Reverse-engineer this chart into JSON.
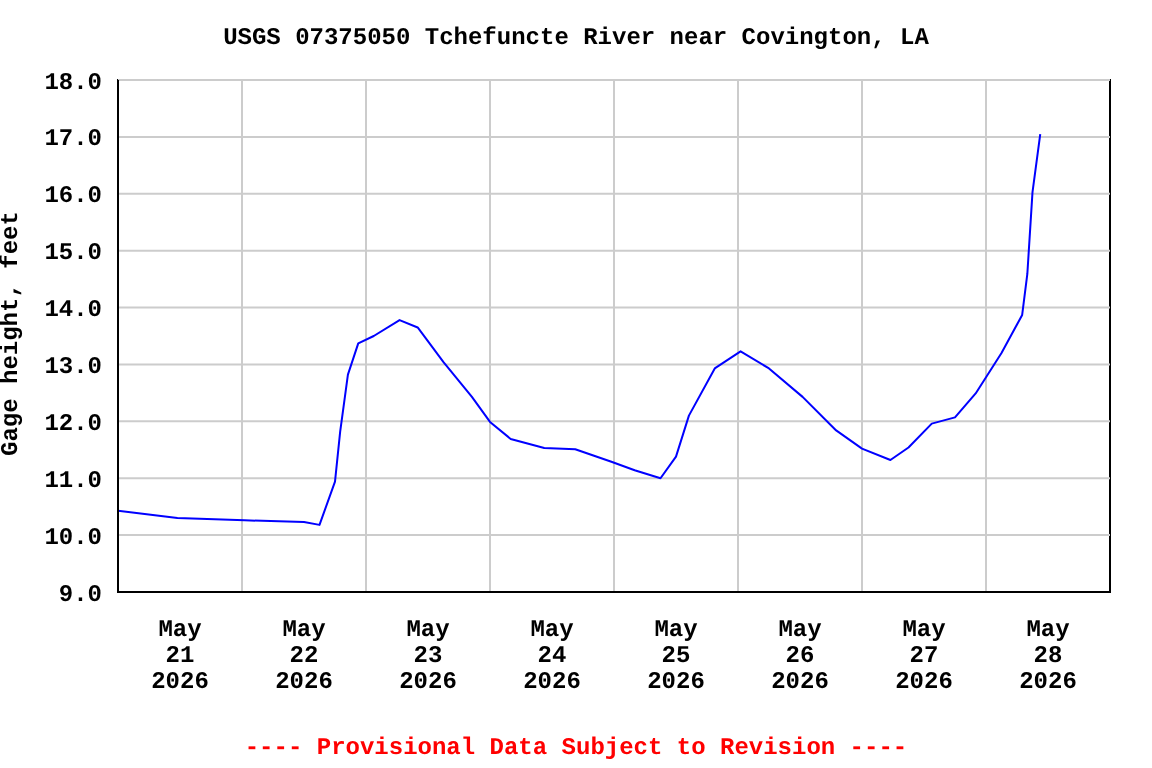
{
  "chart_data": {
    "type": "line",
    "title": "USGS 07375050 Tchefuncte River near Covington, LA",
    "ylabel": "Gage height, feet",
    "annotations": [
      "---- Provisional Data Subject to Revision ----"
    ],
    "x": [
      "2026-05-21T00:00",
      "2026-05-21T11:30",
      "2026-05-22T00:30",
      "2026-05-22T12:00",
      "2026-05-22T15:00",
      "2026-05-22T18:00",
      "2026-05-22T19:00",
      "2026-05-22T20:30",
      "2026-05-22T22:30",
      "2026-05-23T01:30",
      "2026-05-23T06:30",
      "2026-05-23T10:00",
      "2026-05-23T15:00",
      "2026-05-23T20:30",
      "2026-05-24T00:00",
      "2026-05-24T04:00",
      "2026-05-24T10:30",
      "2026-05-24T16:30",
      "2026-05-24T23:30",
      "2026-05-25T04:00",
      "2026-05-25T09:00",
      "2026-05-25T12:00",
      "2026-05-25T14:30",
      "2026-05-25T19:30",
      "2026-05-26T00:30",
      "2026-05-26T06:00",
      "2026-05-26T12:30",
      "2026-05-26T19:00",
      "2026-05-27T00:00",
      "2026-05-27T05:30",
      "2026-05-27T09:00",
      "2026-05-27T13:30",
      "2026-05-27T18:00",
      "2026-05-27T22:00",
      "2026-05-28T03:00",
      "2026-05-28T07:00",
      "2026-05-28T08:00",
      "2026-05-28T09:00",
      "2026-05-28T10:30"
    ],
    "series": [
      {
        "color": "#0000ff",
        "values": [
          10.43,
          10.3,
          10.26,
          10.23,
          10.18,
          10.94,
          11.82,
          12.82,
          13.37,
          13.5,
          13.78,
          13.65,
          13.04,
          12.43,
          11.99,
          11.69,
          11.53,
          11.51,
          11.29,
          11.14,
          11.0,
          11.38,
          12.1,
          12.93,
          13.23,
          12.93,
          12.43,
          11.84,
          11.52,
          11.32,
          11.54,
          11.96,
          12.07,
          12.49,
          13.2,
          13.87,
          14.59,
          16.03,
          17.05
        ]
      }
    ],
    "xlim": [
      "2026-05-21T00:00",
      "2026-05-29T00:00"
    ],
    "xticks": [
      {
        "value": "2026-05-21T12:00",
        "label": "May\n21\n2026"
      },
      {
        "value": "2026-05-22T00:00",
        "label": null
      },
      {
        "value": "2026-05-22T12:00",
        "label": "May\n22\n2026"
      },
      {
        "value": "2026-05-23T00:00",
        "label": null
      },
      {
        "value": "2026-05-23T12:00",
        "label": "May\n23\n2026"
      },
      {
        "value": "2026-05-24T00:00",
        "label": null
      },
      {
        "value": "2026-05-24T12:00",
        "label": "May\n24\n2026"
      },
      {
        "value": "2026-05-25T00:00",
        "label": null
      },
      {
        "value": "2026-05-25T12:00",
        "label": "May\n25\n2026"
      },
      {
        "value": "2026-05-26T00:00",
        "label": null
      },
      {
        "value": "2026-05-26T12:00",
        "label": "May\n26\n2026"
      },
      {
        "value": "2026-05-27T00:00",
        "label": null
      },
      {
        "value": "2026-05-27T12:00",
        "label": "May\n27\n2026"
      },
      {
        "value": "2026-05-28T00:00",
        "label": null
      },
      {
        "value": "2026-05-28T12:00",
        "label": "May\n28\n2026"
      }
    ],
    "ylim": [
      9,
      18
    ],
    "yticks": [
      {
        "value": 9,
        "label": "9.0"
      },
      {
        "value": 10,
        "label": "10.0"
      },
      {
        "value": 11,
        "label": "11.0"
      },
      {
        "value": 12,
        "label": "12.0"
      },
      {
        "value": 13,
        "label": "13.0"
      },
      {
        "value": 14,
        "label": "14.0"
      },
      {
        "value": 15,
        "label": "15.0"
      },
      {
        "value": 16,
        "label": "16.0"
      },
      {
        "value": 17,
        "label": "17.0"
      },
      {
        "value": 18,
        "label": "18.0"
      }
    ],
    "grid": true
  }
}
